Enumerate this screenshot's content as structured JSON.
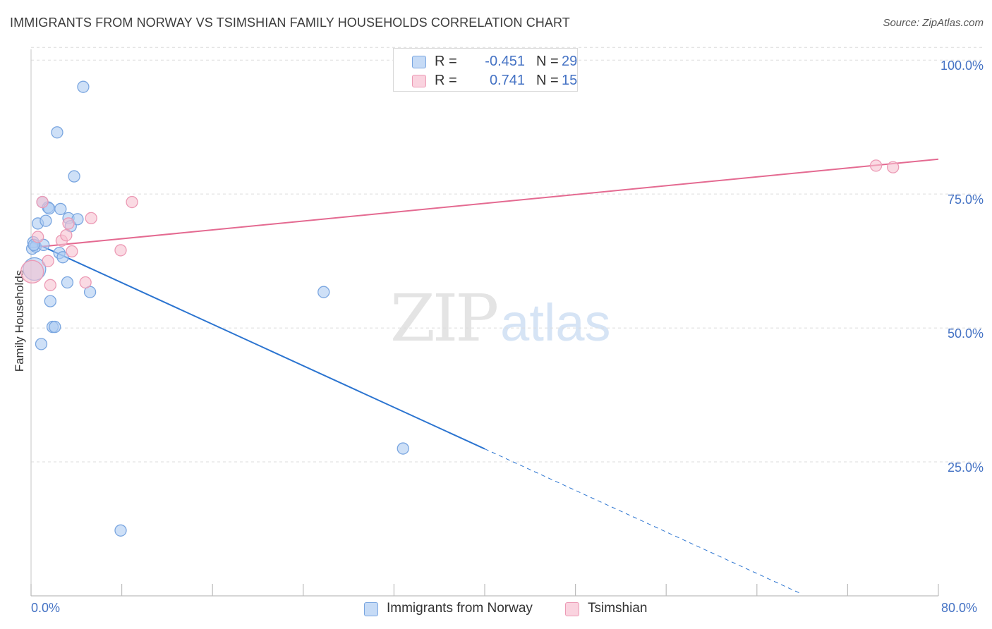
{
  "title": "IMMIGRANTS FROM NORWAY VS TSIMSHIAN FAMILY HOUSEHOLDS CORRELATION CHART",
  "source": "Source: ZipAtlas.com",
  "watermark": {
    "zip": "ZIP",
    "atlas": "atlas"
  },
  "legend_top": [
    {
      "r_label": "R =",
      "r_value": "-0.451",
      "n_label": "N =",
      "n_value": "29"
    },
    {
      "r_label": "R =",
      "r_value": "0.741",
      "n_label": "N =",
      "n_value": "15"
    }
  ],
  "legend_bottom": [
    "Immigrants from Norway",
    "Tsimshian"
  ],
  "colors": {
    "blue_fill": "#aecbf2",
    "blue_stroke": "#7aa6e0",
    "blue_line": "#2b74d0",
    "pink_fill": "#f7c1d1",
    "pink_stroke": "#ec9ab5",
    "pink_line": "#e46a91",
    "tick_text": "#4472c4",
    "grid": "#dcdcdc"
  },
  "chart_data": {
    "type": "scatter",
    "title": "IMMIGRANTS FROM NORWAY VS TSIMSHIAN FAMILY HOUSEHOLDS CORRELATION CHART",
    "xlabel": "",
    "ylabel": "Family Households",
    "xlim": [
      0,
      80
    ],
    "ylim": [
      0,
      102
    ],
    "x_tick_labels": [
      "0.0%",
      "80.0%"
    ],
    "y_ticks": [
      {
        "value": 25,
        "label": "25.0%"
      },
      {
        "value": 50,
        "label": "50.0%"
      },
      {
        "value": 75,
        "label": "75.0%"
      },
      {
        "value": 100,
        "label": "100.0%"
      }
    ],
    "series": [
      {
        "name": "Immigrants from Norway",
        "color": "blue",
        "r": -0.451,
        "n": 29,
        "points": [
          [
            0.1,
            64.8
          ],
          [
            0.2,
            66.0
          ],
          [
            0.3,
            61.0
          ],
          [
            0.4,
            65.2
          ],
          [
            0.6,
            69.5
          ],
          [
            0.9,
            47.0
          ],
          [
            1.0,
            73.5
          ],
          [
            1.1,
            65.5
          ],
          [
            1.3,
            70.0
          ],
          [
            1.5,
            72.5
          ],
          [
            1.6,
            72.3
          ],
          [
            1.7,
            55.0
          ],
          [
            1.9,
            50.2
          ],
          [
            2.1,
            50.2
          ],
          [
            2.3,
            86.5
          ],
          [
            2.5,
            64.0
          ],
          [
            2.6,
            72.2
          ],
          [
            2.8,
            63.2
          ],
          [
            3.2,
            58.5
          ],
          [
            3.3,
            70.5
          ],
          [
            3.5,
            69.0
          ],
          [
            3.8,
            78.3
          ],
          [
            4.1,
            70.3
          ],
          [
            4.6,
            95.0
          ],
          [
            5.2,
            56.7
          ],
          [
            7.9,
            12.2
          ],
          [
            25.8,
            56.7
          ],
          [
            32.8,
            27.5
          ],
          [
            0.25,
            65.5
          ]
        ],
        "trend": {
          "x0": 0,
          "y0": 66.2,
          "x_solid_end": 40,
          "x1": 68,
          "y1": 0.3
        }
      },
      {
        "name": "Tsimshian",
        "color": "pink",
        "r": 0.741,
        "n": 15,
        "points": [
          [
            0.1,
            60.5
          ],
          [
            0.6,
            67.0
          ],
          [
            1.0,
            73.5
          ],
          [
            1.5,
            62.5
          ],
          [
            1.7,
            58.0
          ],
          [
            2.7,
            66.3
          ],
          [
            3.1,
            67.3
          ],
          [
            3.3,
            69.5
          ],
          [
            3.6,
            64.3
          ],
          [
            4.8,
            58.5
          ],
          [
            5.3,
            70.5
          ],
          [
            7.9,
            64.5
          ],
          [
            8.9,
            73.5
          ],
          [
            74.5,
            80.3
          ],
          [
            76.0,
            80.0
          ]
        ],
        "trend": {
          "x0": 0,
          "y0": 65.0,
          "x1": 80,
          "y1": 81.5
        }
      }
    ]
  }
}
